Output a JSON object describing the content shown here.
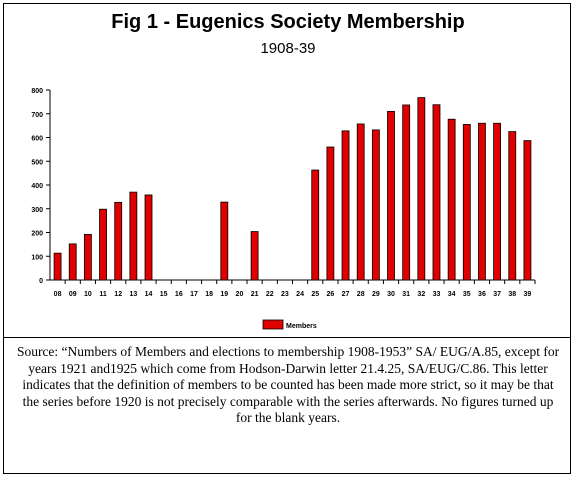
{
  "chart_data": {
    "type": "bar",
    "title": "Fig 1 - Eugenics Society Membership",
    "subtitle": "1908-39",
    "categories": [
      "08",
      "09",
      "10",
      "11",
      "12",
      "13",
      "14",
      "15",
      "16",
      "17",
      "18",
      "19",
      "20",
      "21",
      "22",
      "23",
      "24",
      "25",
      "26",
      "27",
      "28",
      "29",
      "30",
      "31",
      "32",
      "33",
      "34",
      "35",
      "36",
      "37",
      "38",
      "39"
    ],
    "series": [
      {
        "name": "Members",
        "values": [
          113,
          152,
          192,
          298,
          327,
          370,
          358,
          null,
          null,
          null,
          null,
          328,
          null,
          204,
          null,
          null,
          null,
          463,
          560,
          628,
          657,
          632,
          710,
          737,
          768,
          738,
          677,
          655,
          660,
          660,
          625,
          587
        ]
      }
    ],
    "yticks": [
      "0",
      "100",
      "200",
      "300",
      "400",
      "500",
      "600",
      "700",
      "800"
    ],
    "ylim": [
      0,
      800
    ],
    "legend_position": "bottom-center",
    "bar_color": "#e00000",
    "grid": false
  },
  "caption": "Source: “Numbers of Members and elections to membership 1908-1953” SA/ EUG/A.85, except for years 1921 and1925 which come from Hodson-Darwin letter 21.4.25, SA/EUG/C.86. This letter indicates that the definition of members to be counted has been made more strict, so it may be that the series before 1920 is not precisely comparable with the series afterwards. No figures turned up for the blank years."
}
